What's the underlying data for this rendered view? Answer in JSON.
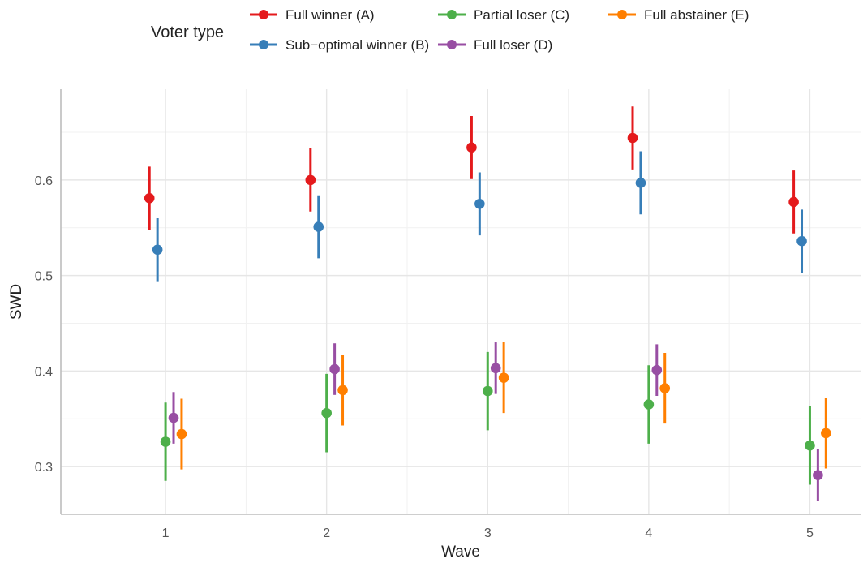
{
  "chart_data": {
    "type": "scatter",
    "subtype": "point-with-error-bars",
    "xlabel": "Wave",
    "ylabel": "SWD",
    "x_ticks": [
      "1",
      "2",
      "3",
      "4",
      "5"
    ],
    "y_ticks": [
      "0.3",
      "0.4",
      "0.5",
      "0.6"
    ],
    "ylim": [
      0.25,
      0.695
    ],
    "grid": true,
    "legend": {
      "title": "Voter type",
      "position": "top"
    },
    "series": [
      {
        "name": "Full winner (A)",
        "color": "#e41a1c",
        "offset": -0.1,
        "values": [
          0.581,
          0.6,
          0.634,
          0.644,
          0.577
        ],
        "lower": [
          0.548,
          0.567,
          0.601,
          0.611,
          0.544
        ],
        "upper": [
          0.614,
          0.633,
          0.667,
          0.677,
          0.61
        ]
      },
      {
        "name": "Sub−optimal winner (B)",
        "color": "#377eb8",
        "offset": -0.05,
        "values": [
          0.527,
          0.551,
          0.575,
          0.597,
          0.536
        ],
        "lower": [
          0.494,
          0.518,
          0.542,
          0.564,
          0.503
        ],
        "upper": [
          0.56,
          0.584,
          0.608,
          0.63,
          0.569
        ]
      },
      {
        "name": "Partial loser (C)",
        "color": "#4daf4a",
        "offset": 0.0,
        "values": [
          0.326,
          0.356,
          0.379,
          0.365,
          0.322
        ],
        "lower": [
          0.285,
          0.315,
          0.338,
          0.324,
          0.281
        ],
        "upper": [
          0.367,
          0.397,
          0.42,
          0.406,
          0.363
        ]
      },
      {
        "name": "Full loser (D)",
        "color": "#984ea3",
        "offset": 0.05,
        "values": [
          0.351,
          0.402,
          0.403,
          0.401,
          0.291
        ],
        "lower": [
          0.324,
          0.375,
          0.376,
          0.374,
          0.264
        ],
        "upper": [
          0.378,
          0.429,
          0.43,
          0.428,
          0.318
        ]
      },
      {
        "name": "Full abstainer (E)",
        "color": "#ff7f00",
        "offset": 0.1,
        "values": [
          0.334,
          0.38,
          0.393,
          0.382,
          0.335
        ],
        "lower": [
          0.297,
          0.343,
          0.356,
          0.345,
          0.298
        ],
        "upper": [
          0.371,
          0.417,
          0.43,
          0.419,
          0.372
        ]
      }
    ]
  }
}
